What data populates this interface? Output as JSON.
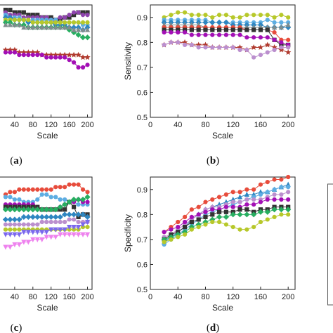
{
  "chart_data": [
    {
      "panel": "a",
      "panel_label": [
        "(",
        "a",
        ")"
      ],
      "type": "line",
      "xlabel": "Scale",
      "ylabel": "",
      "xlim": [
        0,
        210
      ],
      "ylim": [
        0.5,
        0.95
      ],
      "xticks": [
        40,
        80,
        120,
        160,
        200
      ],
      "xtick_labels": [
        "40",
        "80",
        "120",
        "160",
        "200"
      ],
      "yticks": [],
      "ytick_labels": [],
      "x": [
        20,
        30,
        40,
        50,
        60,
        70,
        80,
        90,
        100,
        110,
        120,
        130,
        140,
        150,
        160,
        170,
        180,
        190,
        200
      ],
      "series": [
        {
          "color": "#333333",
          "marker": "square",
          "values": [
            0.93,
            0.93,
            0.92,
            0.92,
            0.92,
            0.91,
            0.91,
            0.91,
            0.9,
            0.9,
            0.9,
            0.89,
            0.89,
            0.9,
            0.9,
            0.91,
            0.92,
            0.92,
            0.92
          ]
        },
        {
          "color": "#8e44ad",
          "marker": "circle",
          "values": [
            0.92,
            0.91,
            0.91,
            0.91,
            0.9,
            0.9,
            0.9,
            0.9,
            0.9,
            0.9,
            0.89,
            0.89,
            0.9,
            0.9,
            0.91,
            0.92,
            0.92,
            0.91,
            0.91
          ]
        },
        {
          "color": "#5dade2",
          "marker": "circle",
          "values": [
            0.91,
            0.9,
            0.9,
            0.9,
            0.89,
            0.89,
            0.89,
            0.89,
            0.89,
            0.89,
            0.89,
            0.89,
            0.88,
            0.88,
            0.88,
            0.88,
            0.88,
            0.87,
            0.87
          ]
        },
        {
          "color": "#2e86c1",
          "marker": "diamond",
          "values": [
            0.9,
            0.9,
            0.89,
            0.89,
            0.89,
            0.88,
            0.88,
            0.88,
            0.88,
            0.88,
            0.88,
            0.87,
            0.87,
            0.87,
            0.86,
            0.86,
            0.86,
            0.85,
            0.86
          ]
        },
        {
          "color": "#b7c82a",
          "marker": "circle",
          "values": [
            0.89,
            0.89,
            0.89,
            0.89,
            0.89,
            0.89,
            0.88,
            0.88,
            0.88,
            0.88,
            0.88,
            0.88,
            0.88,
            0.88,
            0.88,
            0.88,
            0.88,
            0.88,
            0.88
          ]
        },
        {
          "color": "#27ae60",
          "marker": "diamond",
          "values": [
            0.88,
            0.88,
            0.87,
            0.87,
            0.87,
            0.86,
            0.86,
            0.86,
            0.86,
            0.86,
            0.86,
            0.86,
            0.86,
            0.86,
            0.85,
            0.84,
            0.83,
            0.82,
            0.82
          ]
        },
        {
          "color": "#7f8c8d",
          "marker": "triangle",
          "values": [
            0.87,
            0.87,
            0.87,
            0.87,
            0.86,
            0.86,
            0.86,
            0.86,
            0.86,
            0.86,
            0.86,
            0.86,
            0.86,
            0.86,
            0.86,
            0.85,
            0.85,
            0.85,
            0.85
          ]
        },
        {
          "color": "#b03a2e",
          "marker": "star",
          "values": [
            0.77,
            0.77,
            0.77,
            0.76,
            0.76,
            0.76,
            0.76,
            0.76,
            0.75,
            0.75,
            0.75,
            0.75,
            0.75,
            0.75,
            0.75,
            0.75,
            0.75,
            0.74,
            0.74
          ]
        },
        {
          "color": "#a30fb5",
          "marker": "circle",
          "values": [
            0.76,
            0.76,
            0.76,
            0.75,
            0.75,
            0.75,
            0.75,
            0.75,
            0.75,
            0.74,
            0.74,
            0.74,
            0.74,
            0.74,
            0.73,
            0.72,
            0.7,
            0.7,
            0.71
          ]
        }
      ]
    },
    {
      "panel": "b",
      "panel_label": [
        "(",
        "b",
        ")"
      ],
      "type": "line",
      "xlabel": "Scale",
      "ylabel": "Sensitivity",
      "xlim": [
        0,
        210
      ],
      "ylim": [
        0.5,
        0.95
      ],
      "xticks": [
        0,
        40,
        80,
        120,
        160,
        200
      ],
      "xtick_labels": [
        "0",
        "40",
        "80",
        "120",
        "160",
        "200"
      ],
      "yticks": [
        0.5,
        0.6,
        0.7,
        0.8,
        0.9
      ],
      "ytick_labels": [
        "0.5",
        "0.6",
        "0.7",
        "0.8",
        "0.9"
      ],
      "x": [
        20,
        30,
        40,
        50,
        60,
        70,
        80,
        90,
        100,
        110,
        120,
        130,
        140,
        150,
        160,
        170,
        180,
        190,
        200
      ],
      "series": [
        {
          "color": "#b7c82a",
          "marker": "circle",
          "values": [
            0.9,
            0.91,
            0.92,
            0.92,
            0.91,
            0.91,
            0.91,
            0.9,
            0.91,
            0.91,
            0.9,
            0.9,
            0.91,
            0.91,
            0.91,
            0.91,
            0.9,
            0.91,
            0.9
          ]
        },
        {
          "color": "#5dade2",
          "marker": "circle",
          "values": [
            0.89,
            0.89,
            0.89,
            0.89,
            0.89,
            0.89,
            0.89,
            0.88,
            0.88,
            0.88,
            0.88,
            0.88,
            0.88,
            0.88,
            0.88,
            0.89,
            0.88,
            0.88,
            0.88
          ]
        },
        {
          "color": "#2e86c1",
          "marker": "diamond",
          "values": [
            0.88,
            0.88,
            0.88,
            0.88,
            0.88,
            0.88,
            0.88,
            0.88,
            0.88,
            0.88,
            0.87,
            0.87,
            0.87,
            0.87,
            0.87,
            0.86,
            0.86,
            0.86,
            0.86
          ]
        },
        {
          "color": "#7f8c8d",
          "marker": "triangle",
          "values": [
            0.87,
            0.87,
            0.87,
            0.87,
            0.87,
            0.87,
            0.86,
            0.86,
            0.86,
            0.86,
            0.86,
            0.86,
            0.86,
            0.86,
            0.86,
            0.86,
            0.86,
            0.86,
            0.87
          ]
        },
        {
          "color": "#e74c3c",
          "marker": "circle",
          "values": [
            0.86,
            0.86,
            0.86,
            0.86,
            0.86,
            0.86,
            0.86,
            0.86,
            0.86,
            0.86,
            0.86,
            0.86,
            0.85,
            0.85,
            0.85,
            0.85,
            0.84,
            0.81,
            0.81
          ]
        },
        {
          "color": "#333333",
          "marker": "square",
          "values": [
            0.85,
            0.85,
            0.85,
            0.85,
            0.85,
            0.85,
            0.85,
            0.85,
            0.85,
            0.85,
            0.85,
            0.85,
            0.85,
            0.85,
            0.85,
            0.85,
            0.81,
            0.79,
            0.79
          ]
        },
        {
          "color": "#a30fb5",
          "marker": "circle",
          "values": [
            0.84,
            0.84,
            0.84,
            0.84,
            0.83,
            0.83,
            0.83,
            0.83,
            0.83,
            0.83,
            0.83,
            0.83,
            0.82,
            0.82,
            0.82,
            0.82,
            0.81,
            0.8,
            0.79
          ]
        },
        {
          "color": "#b03a2e",
          "marker": "star",
          "values": [
            0.79,
            0.8,
            0.8,
            0.8,
            0.79,
            0.79,
            0.79,
            0.78,
            0.78,
            0.78,
            0.78,
            0.78,
            0.77,
            0.78,
            0.78,
            0.79,
            0.78,
            0.77,
            0.76
          ]
        },
        {
          "color": "#bb8fce",
          "marker": "circle",
          "values": [
            0.79,
            0.8,
            0.8,
            0.79,
            0.79,
            0.78,
            0.78,
            0.78,
            0.78,
            0.78,
            0.78,
            0.77,
            0.77,
            0.74,
            0.75,
            0.76,
            0.77,
            0.78,
            0.78
          ]
        }
      ]
    },
    {
      "panel": "c",
      "panel_label": [
        "(",
        "c",
        ")"
      ],
      "type": "line",
      "xlabel": "Scale",
      "ylabel": "",
      "xlim": [
        0,
        210
      ],
      "ylim": [
        0.5,
        0.95
      ],
      "xticks": [
        40,
        80,
        120,
        160,
        200
      ],
      "xtick_labels": [
        "40",
        "80",
        "120",
        "160",
        "200"
      ],
      "yticks": [],
      "ytick_labels": [],
      "x": [
        20,
        30,
        40,
        50,
        60,
        70,
        80,
        90,
        100,
        110,
        120,
        130,
        140,
        150,
        160,
        170,
        180,
        190,
        200
      ],
      "series": [
        {
          "color": "#e74c3c",
          "marker": "circle",
          "values": [
            0.88,
            0.89,
            0.89,
            0.9,
            0.9,
            0.9,
            0.9,
            0.9,
            0.9,
            0.9,
            0.9,
            0.91,
            0.91,
            0.91,
            0.92,
            0.92,
            0.92,
            0.9,
            0.89
          ]
        },
        {
          "color": "#5dade2",
          "marker": "circle",
          "values": [
            0.87,
            0.87,
            0.86,
            0.86,
            0.85,
            0.85,
            0.85,
            0.86,
            0.88,
            0.88,
            0.87,
            0.87,
            0.86,
            0.86,
            0.85,
            0.85,
            0.84,
            0.84,
            0.84
          ]
        },
        {
          "color": "#a30fb5",
          "marker": "circle",
          "values": [
            0.84,
            0.84,
            0.84,
            0.84,
            0.84,
            0.84,
            0.84,
            0.83,
            0.82,
            0.82,
            0.82,
            0.82,
            0.83,
            0.84,
            0.85,
            0.85,
            0.86,
            0.85,
            0.85
          ]
        },
        {
          "color": "#333333",
          "marker": "square",
          "values": [
            0.83,
            0.83,
            0.83,
            0.83,
            0.83,
            0.83,
            0.83,
            0.83,
            0.82,
            0.82,
            0.82,
            0.82,
            0.82,
            0.82,
            0.85,
            0.83,
            0.79,
            0.8,
            0.8
          ]
        },
        {
          "color": "#27ae60",
          "marker": "diamond",
          "values": [
            0.82,
            0.82,
            0.82,
            0.82,
            0.82,
            0.82,
            0.82,
            0.82,
            0.82,
            0.82,
            0.82,
            0.82,
            0.83,
            0.84,
            0.85,
            0.86,
            0.86,
            0.86,
            0.87
          ]
        },
        {
          "color": "#2e86c1",
          "marker": "diamond",
          "values": [
            0.78,
            0.78,
            0.78,
            0.78,
            0.79,
            0.79,
            0.79,
            0.79,
            0.79,
            0.79,
            0.79,
            0.79,
            0.79,
            0.8,
            0.8,
            0.8,
            0.8,
            0.8,
            0.79
          ]
        },
        {
          "color": "#bb8fce",
          "marker": "circle",
          "values": [
            0.76,
            0.76,
            0.76,
            0.76,
            0.76,
            0.76,
            0.76,
            0.76,
            0.77,
            0.77,
            0.77,
            0.77,
            0.77,
            0.77,
            0.78,
            0.78,
            0.77,
            0.77,
            0.77
          ]
        },
        {
          "color": "#b7c82a",
          "marker": "circle",
          "values": [
            0.74,
            0.74,
            0.74,
            0.74,
            0.74,
            0.74,
            0.74,
            0.74,
            0.74,
            0.74,
            0.74,
            0.74,
            0.74,
            0.74,
            0.74,
            0.74,
            0.74,
            0.75,
            0.75
          ]
        },
        {
          "color": "#7b68ee",
          "marker": "triangle-down",
          "values": [
            0.72,
            0.72,
            0.72,
            0.72,
            0.73,
            0.73,
            0.73,
            0.73,
            0.73,
            0.73,
            0.74,
            0.74,
            0.74,
            0.74,
            0.75,
            0.75,
            0.75,
            0.76,
            0.77
          ]
        },
        {
          "color": "#ee82ee",
          "marker": "triangle-down",
          "values": [
            0.67,
            0.67,
            0.68,
            0.68,
            0.69,
            0.69,
            0.7,
            0.7,
            0.7,
            0.71,
            0.71,
            0.71,
            0.72,
            0.72,
            0.72,
            0.72,
            0.72,
            0.72,
            0.72
          ]
        }
      ]
    },
    {
      "panel": "d",
      "panel_label": [
        "(",
        "d",
        ")"
      ],
      "type": "line",
      "xlabel": "Scale",
      "ylabel": "Specificity",
      "xlim": [
        0,
        210
      ],
      "ylim": [
        0.5,
        0.95
      ],
      "xticks": [
        0,
        40,
        80,
        120,
        160,
        200
      ],
      "xtick_labels": [
        "0",
        "40",
        "80",
        "120",
        "160",
        "200"
      ],
      "yticks": [
        0.5,
        0.6,
        0.7,
        0.8,
        0.9
      ],
      "ytick_labels": [
        "0.5",
        "0.6",
        "0.7",
        "0.8",
        "0.9"
      ],
      "x": [
        20,
        30,
        40,
        50,
        60,
        70,
        80,
        90,
        100,
        110,
        120,
        130,
        140,
        150,
        160,
        170,
        180,
        190,
        200
      ],
      "series": [
        {
          "color": "#e74c3c",
          "marker": "circle",
          "values": [
            0.73,
            0.75,
            0.77,
            0.79,
            0.82,
            0.83,
            0.85,
            0.86,
            0.87,
            0.88,
            0.89,
            0.89,
            0.9,
            0.9,
            0.92,
            0.93,
            0.94,
            0.94,
            0.95
          ]
        },
        {
          "color": "#2e86c1",
          "marker": "triangle",
          "values": [
            0.69,
            0.71,
            0.73,
            0.75,
            0.78,
            0.8,
            0.82,
            0.83,
            0.84,
            0.85,
            0.86,
            0.87,
            0.88,
            0.88,
            0.89,
            0.89,
            0.9,
            0.91,
            0.92
          ]
        },
        {
          "color": "#5dade2",
          "marker": "circle",
          "values": [
            0.68,
            0.7,
            0.72,
            0.74,
            0.76,
            0.78,
            0.8,
            0.81,
            0.82,
            0.83,
            0.84,
            0.85,
            0.86,
            0.87,
            0.88,
            0.89,
            0.9,
            0.91,
            0.91
          ]
        },
        {
          "color": "#bb8fce",
          "marker": "circle",
          "values": [
            0.71,
            0.72,
            0.74,
            0.76,
            0.78,
            0.8,
            0.82,
            0.83,
            0.83,
            0.84,
            0.85,
            0.85,
            0.86,
            0.86,
            0.86,
            0.87,
            0.88,
            0.88,
            0.89
          ]
        },
        {
          "color": "#a30fb5",
          "marker": "circle",
          "values": [
            0.73,
            0.74,
            0.75,
            0.77,
            0.79,
            0.8,
            0.81,
            0.82,
            0.82,
            0.83,
            0.83,
            0.83,
            0.84,
            0.84,
            0.85,
            0.86,
            0.86,
            0.86,
            0.86
          ]
        },
        {
          "color": "#333333",
          "marker": "square",
          "values": [
            0.7,
            0.72,
            0.73,
            0.75,
            0.77,
            0.78,
            0.79,
            0.8,
            0.81,
            0.81,
            0.81,
            0.82,
            0.82,
            0.81,
            0.82,
            0.82,
            0.83,
            0.83,
            0.83
          ]
        },
        {
          "color": "#27ae60",
          "marker": "diamond",
          "values": [
            0.7,
            0.71,
            0.72,
            0.73,
            0.75,
            0.76,
            0.77,
            0.78,
            0.79,
            0.79,
            0.8,
            0.8,
            0.8,
            0.8,
            0.81,
            0.81,
            0.82,
            0.82,
            0.82
          ]
        },
        {
          "color": "#b7c82a",
          "marker": "circle",
          "values": [
            0.69,
            0.7,
            0.71,
            0.72,
            0.74,
            0.75,
            0.76,
            0.77,
            0.77,
            0.76,
            0.75,
            0.74,
            0.74,
            0.75,
            0.77,
            0.78,
            0.79,
            0.8,
            0.8
          ]
        }
      ]
    }
  ]
}
